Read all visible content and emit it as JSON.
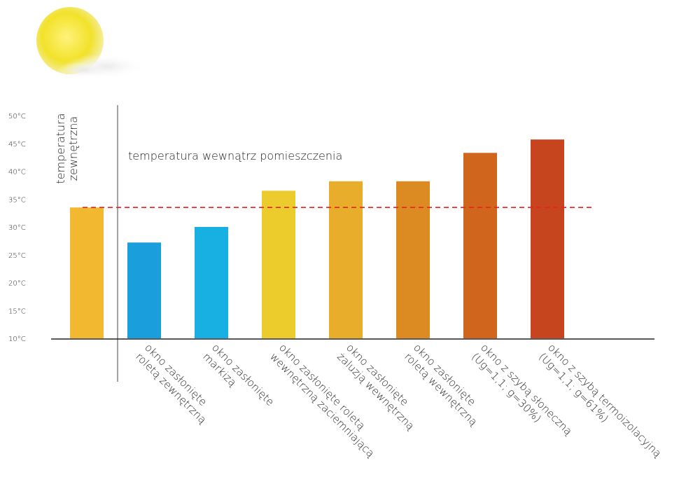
{
  "chart_data": {
    "type": "bar",
    "categories": [
      [
        "temperatura",
        "zewnętrzna"
      ],
      [
        "okno zasłonięte",
        "roletą zewnętrzną"
      ],
      [
        "okno zasłonięte",
        "markizą"
      ],
      [
        "okno zasłonięte roletą",
        "wewnętrzną zaciemniającą"
      ],
      [
        "okno zasłonięte",
        "żaluzją wewnętrzną"
      ],
      [
        "okno zasłonięte",
        "roletą wewnętrzną"
      ],
      [
        "okno z szybą słoneczną",
        "(Ug=1,1; g=30%)"
      ],
      [
        "okno z szybą termoizolacyjną",
        "(Ug=1,1; g=61%)"
      ]
    ],
    "values": [
      33.5,
      27.2,
      30,
      36.5,
      38.2,
      38.2,
      43.3,
      45.7
    ],
    "colors": [
      "#f2b830",
      "#1a9fdc",
      "#18b0e2",
      "#eccc2c",
      "#e8ad2a",
      "#dc8a22",
      "#d0661e",
      "#c6441e"
    ],
    "ylim": [
      10,
      50
    ],
    "yticks": [
      {
        "value": 10,
        "label": "10°C"
      },
      {
        "value": 15,
        "label": "15°C"
      },
      {
        "value": 20,
        "label": "20°C"
      },
      {
        "value": 25,
        "label": "25°C"
      },
      {
        "value": 30,
        "label": "30°C"
      },
      {
        "value": 35,
        "label": "35°C"
      },
      {
        "value": 40,
        "label": "40°C"
      },
      {
        "value": 45,
        "label": "45°C"
      },
      {
        "value": 50,
        "label": "50°C"
      }
    ],
    "annotation": "temperatura wewnątrz pomieszczenia",
    "reference_line": {
      "value": 33.5,
      "color": "#e8231f"
    },
    "grid": false
  }
}
